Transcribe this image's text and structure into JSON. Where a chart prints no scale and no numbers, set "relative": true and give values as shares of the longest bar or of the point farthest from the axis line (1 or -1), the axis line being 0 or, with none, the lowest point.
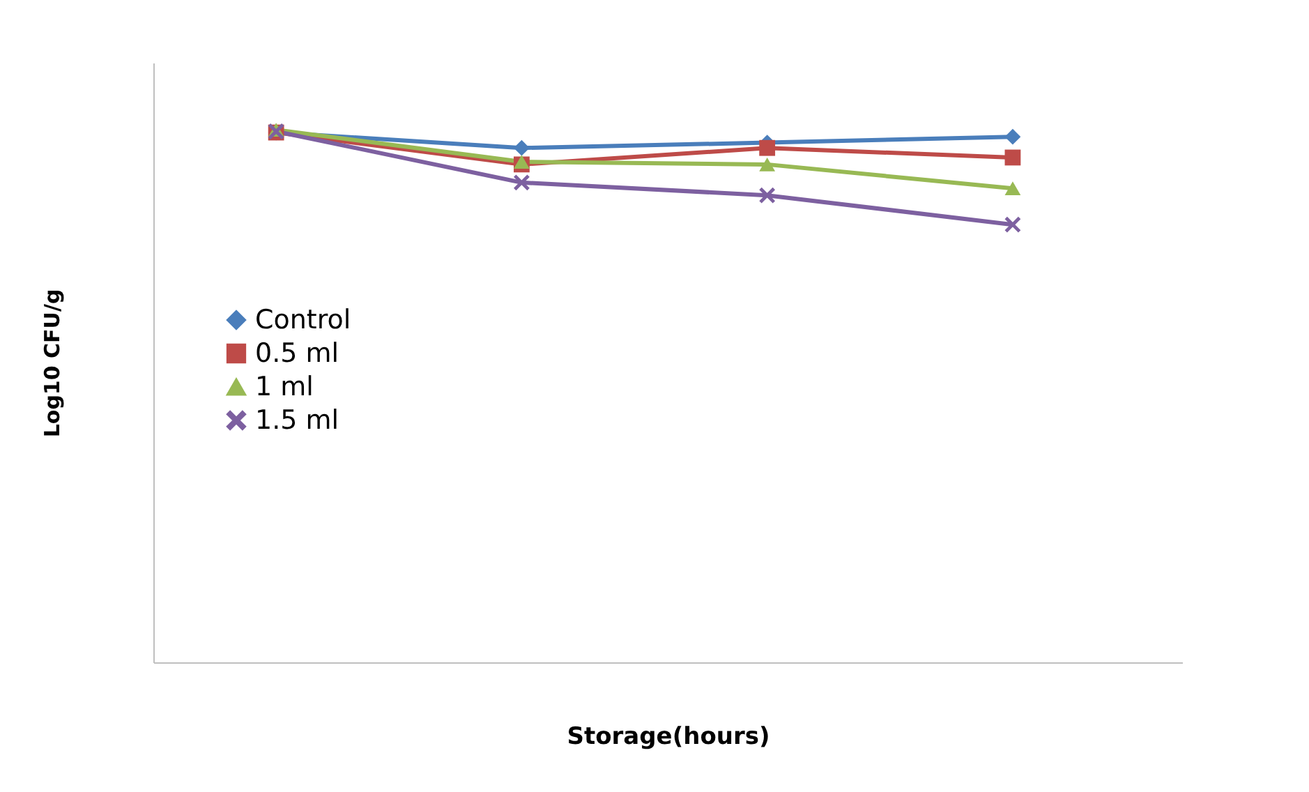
{
  "chart_data": {
    "type": "line",
    "relative": true,
    "xlabel": "Storage(hours)",
    "ylabel": "Log10 CFU/g",
    "categories": [
      null,
      null,
      null,
      null
    ],
    "series": [
      {
        "name": "Control",
        "color": "#4a7ebb",
        "marker": "diamond",
        "values": [
          0.995,
          0.966,
          0.976,
          0.987
        ]
      },
      {
        "name": "0.5 ml",
        "color": "#be4b48",
        "marker": "square",
        "values": [
          0.995,
          0.935,
          0.966,
          0.948
        ]
      },
      {
        "name": "1 ml",
        "color": "#98b954",
        "marker": "triangle",
        "values": [
          1.0,
          0.94,
          0.935,
          0.89
        ]
      },
      {
        "name": "1.5 ml",
        "color": "#7d60a0",
        "marker": "cross",
        "values": [
          0.997,
          0.901,
          0.877,
          0.822
        ]
      }
    ],
    "legend": "left",
    "grid": false,
    "line_style": "solid"
  }
}
